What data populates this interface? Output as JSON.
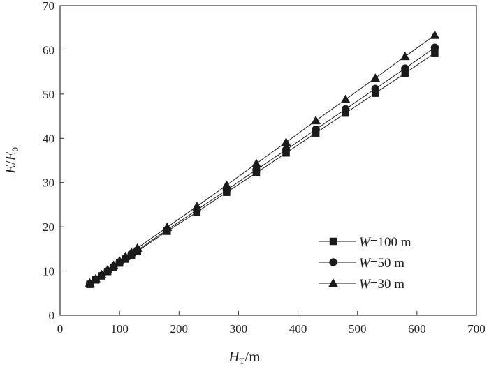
{
  "chart_data": {
    "type": "line",
    "xlabel": {
      "var": "H",
      "sub": "T",
      "unit": "/m"
    },
    "ylabel": {
      "var": "E",
      "sep": "/",
      "var2": "E",
      "sub2": "0"
    },
    "xlim": [
      0,
      700
    ],
    "ylim": [
      0,
      70
    ],
    "xticks": [
      0,
      100,
      200,
      300,
      400,
      500,
      600,
      700
    ],
    "yticks": [
      0,
      10,
      20,
      30,
      40,
      50,
      60,
      70
    ],
    "grid": false,
    "legend_position": "lower-right",
    "x": [
      50,
      60,
      70,
      80,
      90,
      100,
      110,
      120,
      130,
      180,
      230,
      280,
      330,
      380,
      430,
      480,
      530,
      580,
      630
    ],
    "series": [
      {
        "name": "W=100 m",
        "name_var": "W",
        "name_rest": "=100  m",
        "marker": "square",
        "values": [
          7.0,
          8.0,
          8.9,
          9.9,
          10.8,
          11.8,
          12.7,
          13.6,
          14.5,
          19.0,
          23.3,
          27.8,
          32.2,
          36.7,
          41.2,
          45.7,
          50.2,
          54.7,
          59.3
        ]
      },
      {
        "name": "W=50 m",
        "name_var": "W",
        "name_rest": "=50  m",
        "marker": "circle",
        "values": [
          7.1,
          8.1,
          9.0,
          10.0,
          11.0,
          12.0,
          12.9,
          13.8,
          14.7,
          19.3,
          23.8,
          28.3,
          32.9,
          37.4,
          42.0,
          46.6,
          51.2,
          55.8,
          60.5
        ]
      },
      {
        "name": "W=30 m",
        "name_var": "W",
        "name_rest": "=30  m",
        "marker": "triangle",
        "values": [
          7.3,
          8.3,
          9.2,
          10.3,
          11.3,
          12.3,
          13.3,
          14.2,
          15.2,
          19.9,
          24.6,
          29.4,
          34.3,
          39.1,
          44.0,
          48.8,
          53.6,
          58.5,
          63.3
        ]
      }
    ],
    "colors": {
      "line": "#1a1a1a",
      "marker": "#1a1a1a",
      "axis": "#333333"
    }
  }
}
